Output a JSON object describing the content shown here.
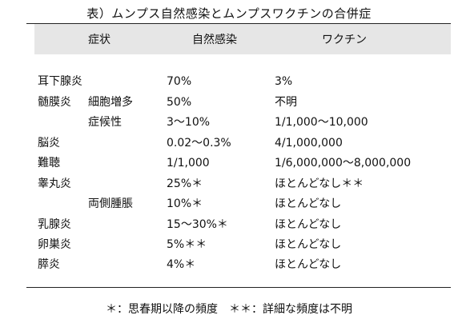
{
  "title": "表）ムンプス自然感染とムンプスワクチンの合併症",
  "headers": {
    "symptom": "症状",
    "natural": "自然感染",
    "vaccine": "ワクチン"
  },
  "rows": [
    {
      "main": "耳下腺炎",
      "sub": "",
      "natural": "70%",
      "vaccine": "3%"
    },
    {
      "main": "髄膜炎",
      "sub": "細胞増多",
      "natural": "50%",
      "vaccine": "不明"
    },
    {
      "main": "",
      "sub": "症候性",
      "natural": "3～10%",
      "vaccine": "1/1,000～10,000"
    },
    {
      "main": "脳炎",
      "sub": "",
      "natural": "0.02～0.3%",
      "vaccine": "4/1,000,000"
    },
    {
      "main": "難聴",
      "sub": "",
      "natural": "1/1,000",
      "vaccine": "1/6,000,000～8,000,000"
    },
    {
      "main": "睾丸炎",
      "sub": "",
      "natural": "25%＊",
      "vaccine": "ほとんどなし＊＊"
    },
    {
      "main": "",
      "sub": "両側腫脹",
      "natural": "10%＊",
      "vaccine": "ほとんどなし"
    },
    {
      "main": "乳腺炎",
      "sub": "",
      "natural": "15～30%＊",
      "vaccine": "ほとんどなし"
    },
    {
      "main": "卵巣炎",
      "sub": "",
      "natural": "5%＊＊",
      "vaccine": "ほとんどなし"
    },
    {
      "main": "膵炎",
      "sub": "",
      "natural": "4%＊",
      "vaccine": "ほとんどなし"
    }
  ],
  "footnote": "＊：思春期以降の頻度　＊＊：詳細な頻度は不明"
}
